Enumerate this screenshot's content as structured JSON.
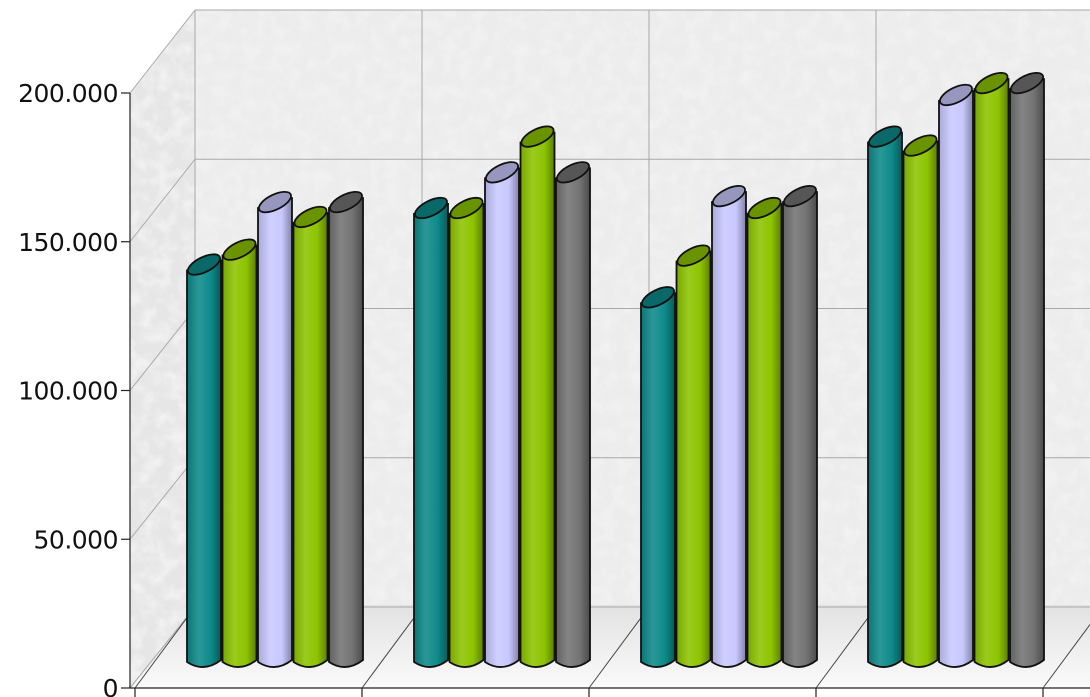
{
  "chart_data": {
    "type": "bar",
    "style": "3d-cylinder",
    "title": "",
    "xlabel": "",
    "ylabel": "",
    "ylim": [
      0,
      200000
    ],
    "y_ticks": [
      {
        "value": 0,
        "label": "0"
      },
      {
        "value": 50000,
        "label": "50.000"
      },
      {
        "value": 100000,
        "label": "100.000"
      },
      {
        "value": 150000,
        "label": "150.000"
      },
      {
        "value": 200000,
        "label": "200.000"
      }
    ],
    "grid": true,
    "legend": "none",
    "categories": [
      "",
      "",
      "",
      ""
    ],
    "series": [
      {
        "color": "#0e8a8a",
        "values": [
          142000,
          161000,
          131000,
          185000
        ]
      },
      {
        "color": "#8dc400",
        "values": [
          147000,
          161000,
          145000,
          182000
        ]
      },
      {
        "color": "#c8c8ff",
        "values": [
          163000,
          173000,
          165000,
          199000
        ]
      },
      {
        "color": "#8dc400",
        "values": [
          158000,
          185000,
          161000,
          203000
        ]
      },
      {
        "color": "#737373",
        "values": [
          163000,
          173000,
          165000,
          203000
        ]
      }
    ]
  }
}
